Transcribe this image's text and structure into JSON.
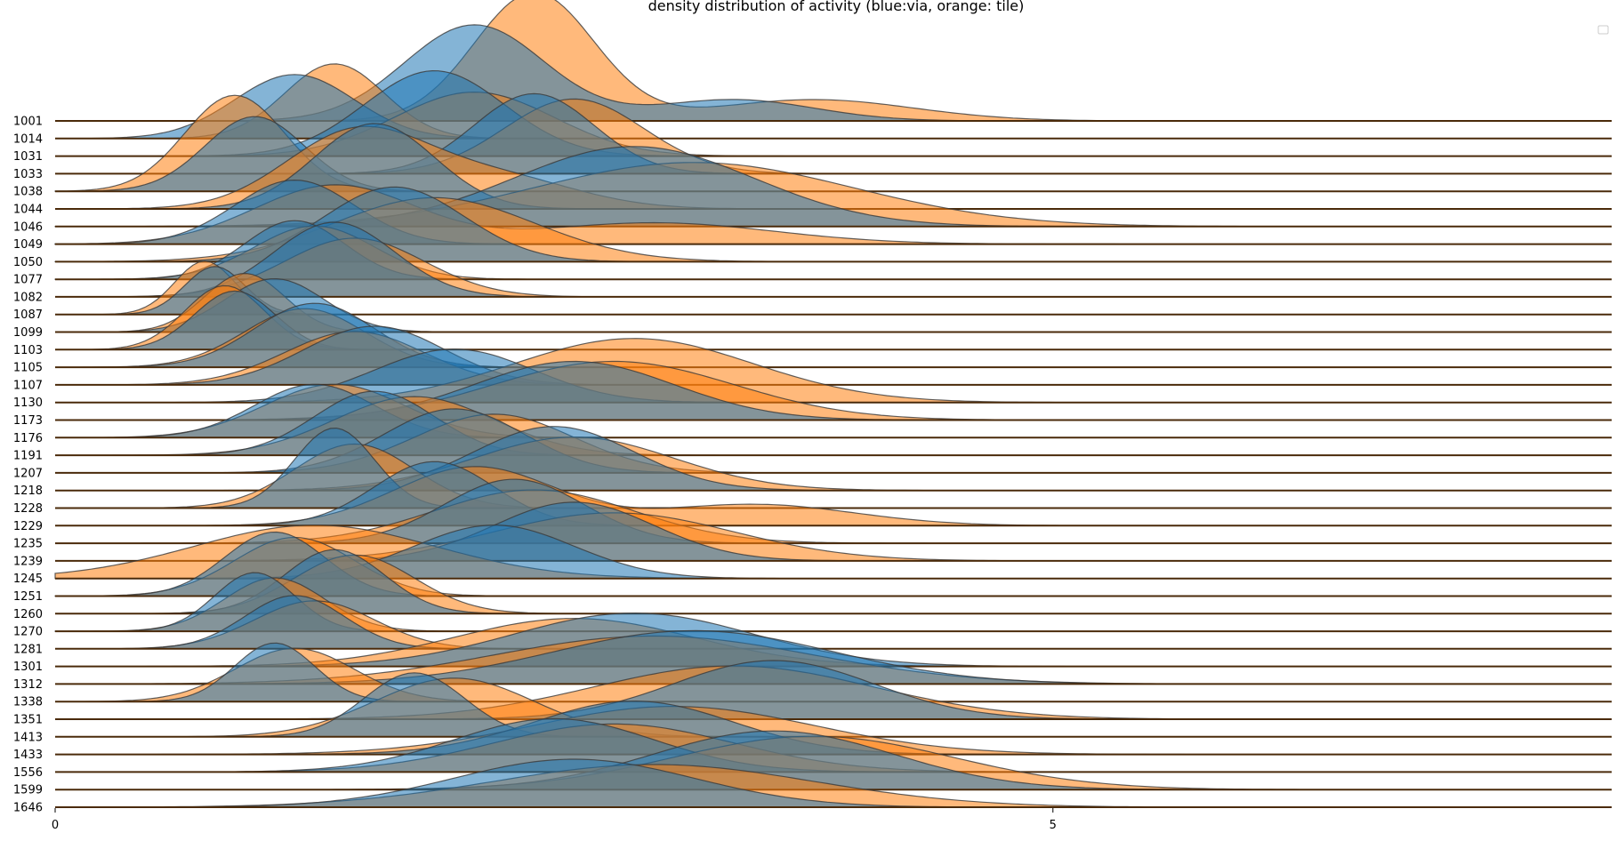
{
  "chart_data": {
    "type": "area",
    "title": "density distribution of activity (blue:via, orange: tile)",
    "xlabel": "",
    "ylabel": "",
    "xlim": [
      0,
      7.8
    ],
    "x_ticks": [
      0,
      5
    ],
    "legend": {
      "placement": "top-right",
      "entries": []
    },
    "colors": {
      "via": "#1f77b4",
      "tile": "#ff7f0e",
      "baseline": "#4a2a0a",
      "outline": "#3a3a3a"
    },
    "series_names": [
      "via",
      "tile"
    ],
    "categories": [
      "1001",
      "1014",
      "1031",
      "1033",
      "1038",
      "1044",
      "1046",
      "1049",
      "1050",
      "1077",
      "1082",
      "1087",
      "1099",
      "1103",
      "1105",
      "1107",
      "1130",
      "1173",
      "1176",
      "1191",
      "1207",
      "1218",
      "1228",
      "1229",
      "1235",
      "1239",
      "1245",
      "1251",
      "1260",
      "1270",
      "1281",
      "1301",
      "1312",
      "1338",
      "1351",
      "1413",
      "1433",
      "1556",
      "1599",
      "1646"
    ],
    "ridges": [
      {
        "id": "1001",
        "via": [
          [
            2.1,
            0.9,
            0.35
          ],
          [
            3.4,
            0.2,
            0.4
          ]
        ],
        "tile": [
          [
            2.4,
            1.2,
            0.3
          ],
          [
            3.8,
            0.2,
            0.5
          ]
        ]
      },
      {
        "id": "1014",
        "via": [
          [
            1.2,
            0.6,
            0.3
          ]
        ],
        "tile": [
          [
            1.4,
            0.7,
            0.25
          ]
        ]
      },
      {
        "id": "1031",
        "via": [
          [
            1.9,
            0.8,
            0.35
          ]
        ],
        "tile": [
          [
            2.1,
            0.6,
            0.4
          ]
        ]
      },
      {
        "id": "1033",
        "via": [
          [
            2.4,
            0.75,
            0.3
          ]
        ],
        "tile": [
          [
            2.6,
            0.7,
            0.35
          ]
        ]
      },
      {
        "id": "1038",
        "via": [
          [
            1.0,
            0.7,
            0.25
          ]
        ],
        "tile": [
          [
            0.9,
            0.9,
            0.25
          ]
        ]
      },
      {
        "id": "1044",
        "via": [
          [
            1.6,
            0.8,
            0.3
          ]
        ],
        "tile": [
          [
            1.5,
            0.7,
            0.35
          ],
          [
            2.2,
            0.3,
            0.4
          ]
        ]
      },
      {
        "id": "1046",
        "via": [
          [
            2.9,
            0.75,
            0.6
          ]
        ],
        "tile": [
          [
            3.2,
            0.6,
            0.8
          ]
        ]
      },
      {
        "id": "1049",
        "via": [
          [
            1.2,
            0.6,
            0.3
          ]
        ],
        "tile": [
          [
            1.4,
            0.55,
            0.4
          ],
          [
            3.0,
            0.2,
            0.6
          ]
        ]
      },
      {
        "id": "1050",
        "via": [
          [
            1.7,
            0.7,
            0.35
          ]
        ],
        "tile": [
          [
            1.9,
            0.6,
            0.5
          ]
        ]
      },
      {
        "id": "1077",
        "via": [
          [
            1.2,
            0.55,
            0.25
          ]
        ],
        "tile": [
          [
            1.3,
            0.5,
            0.3
          ]
        ]
      },
      {
        "id": "1082",
        "via": [
          [
            1.4,
            0.7,
            0.3
          ]
        ],
        "tile": [
          [
            1.5,
            0.55,
            0.35
          ]
        ]
      },
      {
        "id": "1087",
        "via": [
          [
            0.8,
            0.45,
            0.15
          ]
        ],
        "tile": [
          [
            0.75,
            0.5,
            0.15
          ]
        ]
      },
      {
        "id": "1099",
        "via": [
          [
            1.1,
            0.5,
            0.25
          ]
        ],
        "tile": [
          [
            0.95,
            0.55,
            0.2
          ]
        ]
      },
      {
        "id": "1103",
        "via": [
          [
            0.9,
            0.55,
            0.2
          ]
        ],
        "tile": [
          [
            0.85,
            0.6,
            0.2
          ]
        ]
      },
      {
        "id": "1105",
        "via": [
          [
            1.3,
            0.6,
            0.3
          ]
        ],
        "tile": [
          [
            1.25,
            0.55,
            0.3
          ]
        ]
      },
      {
        "id": "1107",
        "via": [
          [
            1.6,
            0.55,
            0.35
          ]
        ],
        "tile": [
          [
            1.5,
            0.5,
            0.35
          ]
        ]
      },
      {
        "id": "1130",
        "via": [
          [
            2.0,
            0.5,
            0.4
          ]
        ],
        "tile": [
          [
            2.9,
            0.6,
            0.6
          ]
        ]
      },
      {
        "id": "1173",
        "via": [
          [
            2.6,
            0.55,
            0.5
          ]
        ],
        "tile": [
          [
            2.8,
            0.55,
            0.6
          ]
        ]
      },
      {
        "id": "1176",
        "via": [
          [
            1.3,
            0.5,
            0.3
          ]
        ],
        "tile": [
          [
            1.4,
            0.5,
            0.35
          ]
        ]
      },
      {
        "id": "1191",
        "via": [
          [
            1.6,
            0.6,
            0.3
          ]
        ],
        "tile": [
          [
            1.8,
            0.55,
            0.4
          ]
        ]
      },
      {
        "id": "1207",
        "via": [
          [
            2.0,
            0.6,
            0.35
          ]
        ],
        "tile": [
          [
            2.2,
            0.55,
            0.4
          ]
        ]
      },
      {
        "id": "1218",
        "via": [
          [
            2.5,
            0.6,
            0.4
          ]
        ],
        "tile": [
          [
            2.6,
            0.5,
            0.5
          ]
        ]
      },
      {
        "id": "1228",
        "via": [
          [
            1.4,
            0.75,
            0.2
          ]
        ],
        "tile": [
          [
            1.5,
            0.6,
            0.3
          ]
        ]
      },
      {
        "id": "1229",
        "via": [
          [
            1.9,
            0.6,
            0.3
          ]
        ],
        "tile": [
          [
            2.1,
            0.55,
            0.4
          ],
          [
            3.5,
            0.2,
            0.5
          ]
        ]
      },
      {
        "id": "1235",
        "via": [
          [
            2.3,
            0.6,
            0.35
          ]
        ],
        "tile": [
          [
            2.4,
            0.5,
            0.5
          ]
        ]
      },
      {
        "id": "1239",
        "via": [
          [
            2.6,
            0.55,
            0.4
          ]
        ],
        "tile": [
          [
            2.8,
            0.45,
            0.6
          ]
        ]
      },
      {
        "id": "1245",
        "via": [
          [
            2.2,
            0.5,
            0.4
          ]
        ],
        "tile": [
          [
            1.3,
            0.5,
            0.6
          ]
        ]
      },
      {
        "id": "1251",
        "via": [
          [
            1.1,
            0.6,
            0.25
          ]
        ],
        "tile": [
          [
            1.2,
            0.55,
            0.3
          ]
        ]
      },
      {
        "id": "1260",
        "via": [
          [
            1.4,
            0.6,
            0.25
          ]
        ],
        "tile": [
          [
            1.5,
            0.55,
            0.3
          ]
        ]
      },
      {
        "id": "1270",
        "via": [
          [
            1.0,
            0.55,
            0.2
          ]
        ],
        "tile": [
          [
            1.1,
            0.5,
            0.25
          ]
        ]
      },
      {
        "id": "1281",
        "via": [
          [
            1.2,
            0.5,
            0.25
          ]
        ],
        "tile": [
          [
            1.3,
            0.45,
            0.3
          ]
        ]
      },
      {
        "id": "1301",
        "via": [
          [
            2.9,
            0.5,
            0.6
          ]
        ],
        "tile": [
          [
            2.6,
            0.45,
            0.6
          ]
        ]
      },
      {
        "id": "1312",
        "via": [
          [
            3.2,
            0.5,
            0.7
          ]
        ],
        "tile": [
          [
            3.0,
            0.45,
            0.8
          ]
        ]
      },
      {
        "id": "1338",
        "via": [
          [
            1.1,
            0.55,
            0.2
          ]
        ],
        "tile": [
          [
            1.2,
            0.5,
            0.3
          ]
        ]
      },
      {
        "id": "1351",
        "via": [
          [
            3.6,
            0.55,
            0.5
          ]
        ],
        "tile": [
          [
            3.4,
            0.5,
            0.7
          ]
        ]
      },
      {
        "id": "1413",
        "via": [
          [
            1.8,
            0.6,
            0.25
          ]
        ],
        "tile": [
          [
            2.0,
            0.55,
            0.4
          ]
        ]
      },
      {
        "id": "1433",
        "via": [
          [
            2.9,
            0.5,
            0.5
          ]
        ],
        "tile": [
          [
            3.1,
            0.45,
            0.7
          ]
        ]
      },
      {
        "id": "1556",
        "via": [
          [
            2.5,
            0.5,
            0.5
          ]
        ],
        "tile": [
          [
            2.8,
            0.45,
            0.6
          ]
        ]
      },
      {
        "id": "1599",
        "via": [
          [
            3.6,
            0.55,
            0.6
          ]
        ],
        "tile": [
          [
            3.8,
            0.5,
            0.7
          ]
        ]
      },
      {
        "id": "1646",
        "via": [
          [
            2.6,
            0.45,
            0.6
          ]
        ],
        "tile": [
          [
            3.0,
            0.4,
            0.8
          ]
        ]
      }
    ]
  }
}
